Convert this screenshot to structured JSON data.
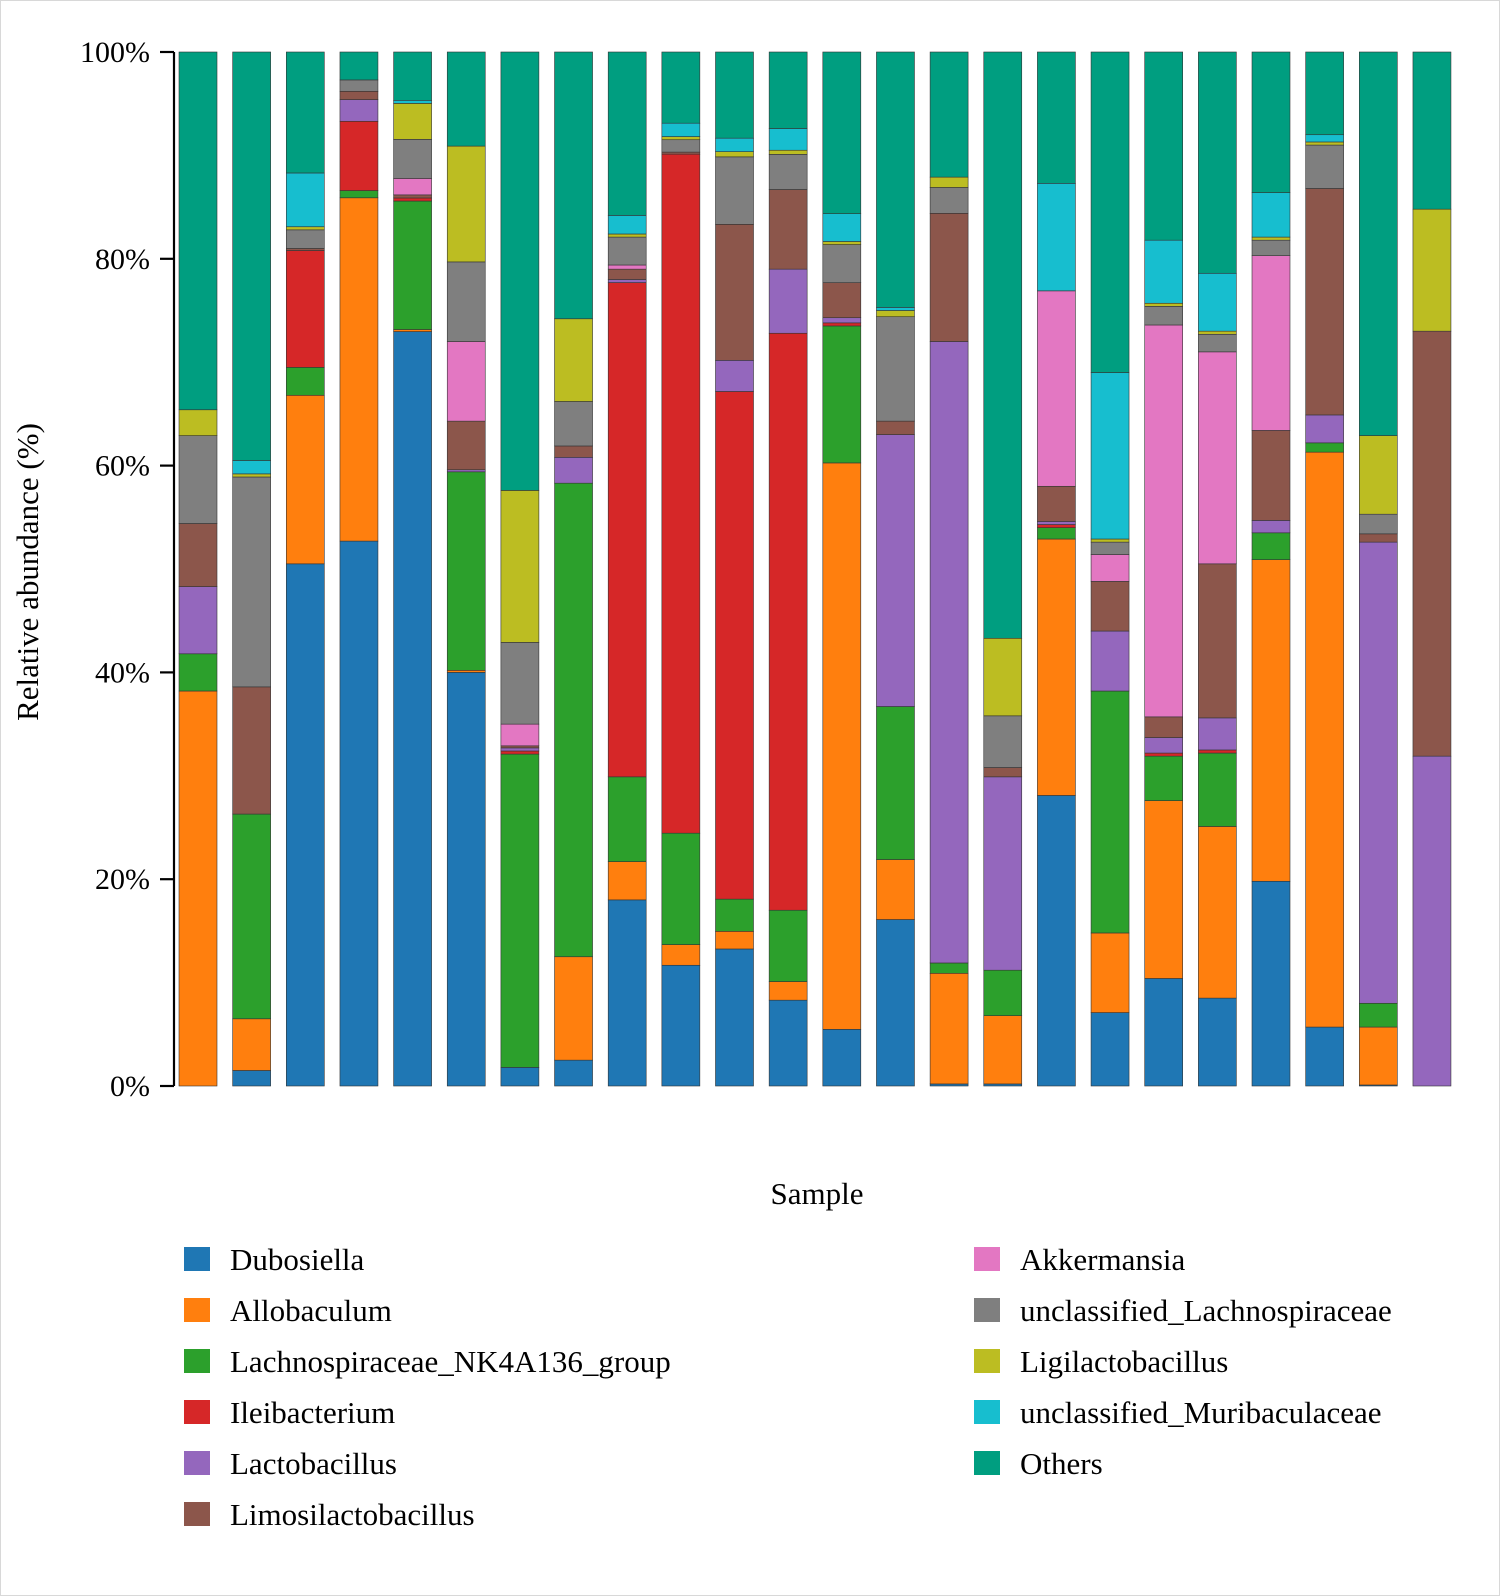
{
  "chart_data": {
    "type": "bar",
    "stacked": true,
    "xlabel": "Sample",
    "ylabel": "Relative abundance (%)",
    "ylim": [
      0,
      100
    ],
    "yticks": [
      0,
      20,
      40,
      60,
      80,
      100
    ],
    "ytick_labels": [
      "0%",
      "20%",
      "40%",
      "60%",
      "80%",
      "100%"
    ],
    "grid": false,
    "legend_position": "bottom",
    "series": [
      {
        "name": "Dubosiella",
        "color": "#1f77b4",
        "values": [
          0,
          1.5,
          50.5,
          52.7,
          73.4,
          40.0,
          1.8,
          2.5,
          18.0,
          11.7,
          13.2,
          8.3,
          5.5,
          16.1,
          0.2,
          0.2,
          28.1,
          7.1,
          10.4,
          8.5,
          19.8,
          5.7,
          0.1,
          0
        ]
      },
      {
        "name": "Allobaculum",
        "color": "#ff7f0e",
        "values": [
          38.2,
          5.0,
          16.3,
          33.2,
          0.2,
          0.2,
          0,
          10.0,
          3.7,
          2.0,
          1.7,
          1.8,
          55.0,
          5.8,
          10.7,
          6.6,
          24.8,
          7.7,
          17.2,
          16.6,
          31.1,
          55.6,
          5.6,
          0
        ]
      },
      {
        "name": "Lachnospiraceae_NK4A136_group",
        "color": "#2ca02c",
        "values": [
          3.6,
          19.8,
          2.7,
          0.7,
          12.5,
          19.2,
          30.3,
          45.8,
          8.2,
          10.8,
          3.1,
          6.9,
          13.3,
          14.8,
          1.0,
          4.4,
          1.1,
          23.4,
          4.3,
          7.1,
          2.6,
          0.9,
          2.3,
          0
        ]
      },
      {
        "name": "Ileibacterium",
        "color": "#d62728",
        "values": [
          0,
          0,
          11.3,
          6.7,
          0.3,
          0,
          0.3,
          0,
          47.8,
          65.8,
          48.9,
          55.8,
          0.3,
          0,
          0,
          0,
          0.3,
          0,
          0.3,
          0.3,
          0,
          0,
          0,
          0
        ]
      },
      {
        "name": "Lactobacillus",
        "color": "#9467bd",
        "values": [
          6.5,
          0,
          0,
          2.1,
          0,
          0.2,
          0.3,
          2.5,
          0.3,
          0,
          3.0,
          6.2,
          0.5,
          26.3,
          60.1,
          18.7,
          0.3,
          5.8,
          1.5,
          3.1,
          1.2,
          2.7,
          44.6,
          31.9
        ]
      },
      {
        "name": "Limosilactobacillus",
        "color": "#8c564b",
        "values": [
          6.1,
          12.3,
          0.2,
          0.8,
          0.3,
          4.7,
          0.2,
          1.1,
          1.0,
          0.2,
          13.1,
          7.7,
          3.4,
          1.3,
          12.4,
          0.9,
          3.4,
          4.8,
          2.0,
          14.9,
          8.7,
          21.9,
          0.8,
          41.1
        ]
      },
      {
        "name": "Akkermansia",
        "color": "#e377c2",
        "values": [
          0,
          0,
          0,
          0,
          1.6,
          7.7,
          2.1,
          0,
          0.4,
          0,
          0,
          0,
          0,
          0,
          0,
          0,
          18.9,
          2.6,
          37.9,
          20.5,
          16.9,
          0,
          0,
          0
        ]
      },
      {
        "name": "unclassified_Lachnospiraceae",
        "color": "#7f7f7f",
        "values": [
          8.5,
          20.3,
          1.8,
          1.1,
          3.8,
          7.7,
          7.9,
          4.3,
          2.7,
          1.2,
          6.5,
          3.4,
          3.7,
          10.1,
          2.5,
          5.0,
          0,
          1.2,
          1.8,
          1.7,
          1.5,
          4.2,
          1.9,
          0
        ]
      },
      {
        "name": "Ligilactobacillus",
        "color": "#bcbd22",
        "values": [
          2.5,
          0.3,
          0.3,
          0,
          3.5,
          11.2,
          14.7,
          8.0,
          0.3,
          0.3,
          0.5,
          0.4,
          0.3,
          0.6,
          1.0,
          7.5,
          0,
          0.3,
          0.3,
          0.3,
          0.3,
          0.3,
          7.6,
          11.8
        ]
      },
      {
        "name": "unclassified_Muribaculaceae",
        "color": "#17becf",
        "values": [
          0,
          1.3,
          5.2,
          0,
          0.3,
          0,
          0,
          0,
          1.8,
          1.3,
          1.3,
          2.1,
          2.7,
          0.3,
          0,
          0,
          10.4,
          16.1,
          6.1,
          5.6,
          4.3,
          0.7,
          0,
          0
        ]
      },
      {
        "name": "Others",
        "color": "#009e80",
        "values": [
          34.6,
          39.5,
          11.7,
          2.7,
          4.7,
          9.1,
          42.4,
          25.8,
          15.8,
          6.9,
          8.3,
          7.4,
          15.7,
          24.7,
          12.1,
          56.7,
          12.7,
          31.0,
          18.2,
          21.4,
          13.6,
          8.0,
          37.1,
          15.2
        ]
      }
    ]
  }
}
